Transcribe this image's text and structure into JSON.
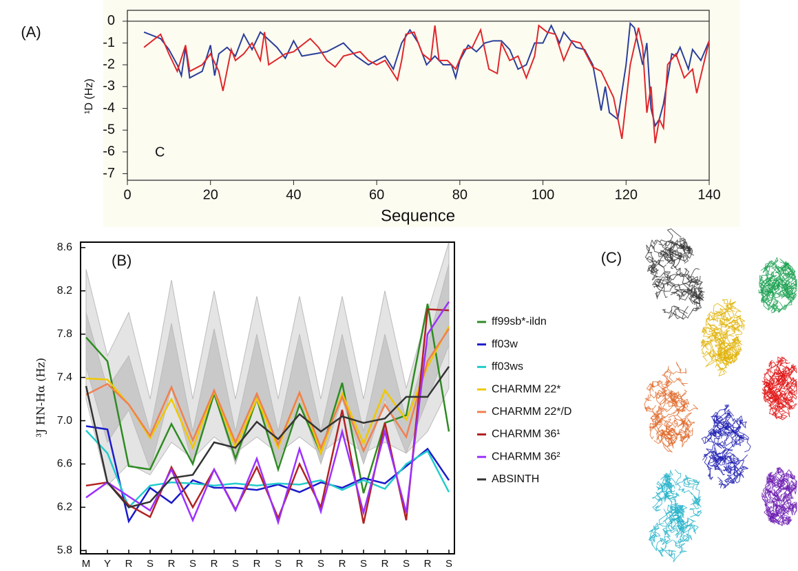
{
  "chart_data": [
    {
      "type": "line",
      "panel_label": "(A)",
      "annotation": "C",
      "ylabel": "¹D (Hz)",
      "xlabel": "Sequence",
      "xlim": [
        0,
        140
      ],
      "xticks": [
        0,
        20,
        40,
        60,
        80,
        100,
        120,
        140
      ],
      "ylim": [
        -7.3,
        0.5
      ],
      "yticks": [
        0,
        -1,
        -2,
        -3,
        -4,
        -5,
        -6,
        -7
      ],
      "series": [
        {
          "color": "#2a3e9a",
          "x": [
            4,
            8,
            10,
            12,
            13,
            14,
            15,
            18,
            20,
            21,
            22,
            24,
            26,
            28,
            30,
            32,
            36,
            38,
            40,
            42,
            48,
            52,
            55,
            58,
            60,
            62,
            64,
            66,
            68,
            70,
            72,
            74,
            76,
            78,
            79,
            80,
            82,
            84,
            86,
            88,
            90,
            92,
            94,
            96,
            98,
            100,
            101,
            102,
            104,
            105,
            108,
            110,
            112,
            114,
            115,
            116,
            118,
            120,
            121,
            122,
            124,
            125,
            126,
            127,
            128,
            129,
            131,
            132,
            133,
            135,
            136,
            138,
            140
          ],
          "values": [
            -0.5,
            -0.8,
            -1.3,
            -2.0,
            -2.5,
            -1.2,
            -2.6,
            -2.3,
            -1.1,
            -2.5,
            -1.5,
            -1.2,
            -1.6,
            -0.6,
            -1.3,
            -0.5,
            -1.2,
            -1.7,
            -0.9,
            -1.6,
            -1.4,
            -1.0,
            -1.6,
            -2.0,
            -1.8,
            -1.6,
            -2.2,
            -1.0,
            -0.4,
            -1.0,
            -2.0,
            -1.6,
            -2.0,
            -2.0,
            -2.6,
            -1.8,
            -1.1,
            -1.4,
            -1.0,
            -0.9,
            -0.9,
            -1.3,
            -2.2,
            -2.0,
            -1.0,
            -1.0,
            -0.6,
            -0.2,
            -1.0,
            -0.5,
            -1.2,
            -1.3,
            -2.0,
            -4.1,
            -3.0,
            -4.2,
            -4.5,
            -2.0,
            -0.1,
            -0.3,
            -2.0,
            -1.0,
            -4.0,
            -4.8,
            -4.5,
            -3.8,
            -1.5,
            -1.6,
            -1.2,
            -2.2,
            -1.3,
            -1.8,
            -0.9
          ]
        },
        {
          "color": "#e0262a",
          "x": [
            4,
            8,
            10,
            12,
            14,
            15,
            18,
            20,
            22,
            23,
            25,
            26,
            28,
            30,
            32,
            33,
            34,
            38,
            40,
            44,
            46,
            48,
            50,
            52,
            56,
            58,
            60,
            62,
            65,
            66,
            67,
            69,
            71,
            73,
            74,
            75,
            77,
            79,
            81,
            83,
            85,
            87,
            89,
            90,
            92,
            94,
            96,
            98,
            99,
            101,
            103,
            105,
            107,
            109,
            112,
            114,
            117,
            119,
            121,
            123,
            124,
            125,
            126,
            127,
            128,
            129,
            130,
            132,
            134,
            136,
            137,
            140
          ],
          "values": [
            -1.2,
            -0.6,
            -1.5,
            -2.3,
            -1.1,
            -2.3,
            -2.0,
            -1.5,
            -2.3,
            -3.2,
            -1.3,
            -1.8,
            -1.5,
            -1.0,
            -1.8,
            -0.5,
            -2.0,
            -1.5,
            -1.4,
            -0.8,
            -1.2,
            -1.8,
            -2.1,
            -1.6,
            -1.4,
            -1.8,
            -2.0,
            -1.8,
            -2.7,
            -1.8,
            -0.6,
            -0.5,
            -1.5,
            -1.8,
            -0.2,
            -1.8,
            -1.8,
            -2.2,
            -1.3,
            -1.2,
            -0.4,
            -2.2,
            -2.4,
            -1.0,
            -1.8,
            -1.6,
            -2.6,
            -1.6,
            -0.2,
            -0.5,
            -0.6,
            -1.8,
            -0.9,
            -1.0,
            -2.1,
            -2.3,
            -3.5,
            -5.4,
            -2.0,
            -0.3,
            -1.2,
            -4.2,
            -3.0,
            -5.6,
            -4.5,
            -4.9,
            -2.0,
            -1.5,
            -2.6,
            -2.2,
            -3.3,
            -0.9
          ]
        }
      ]
    },
    {
      "type": "line",
      "panel_label": "(B)",
      "ylabel": "³J HN-Hα (Hz)",
      "categories": [
        "M",
        "Y",
        "R",
        "S",
        "R",
        "S",
        "R",
        "S",
        "R",
        "S",
        "R",
        "S",
        "R",
        "S",
        "R",
        "S",
        "R",
        "S"
      ],
      "ylim": [
        5.77,
        8.65
      ],
      "yticks": [
        5.8,
        6.2,
        6.6,
        {
          "value": 7,
          "label": "7.0"
        },
        7.4,
        7.8,
        8.2,
        8.6
      ],
      "bands": [
        {
          "color": "#e4e4e4",
          "upper": [
            8.4,
            7.6,
            8.0,
            7.2,
            8.3,
            7.2,
            8.2,
            7.2,
            8.15,
            7.2,
            8.15,
            7.2,
            8.15,
            7.2,
            8.2,
            7.3,
            8.0,
            8.65
          ],
          "lower": [
            7.2,
            6.4,
            6.6,
            6.5,
            6.8,
            6.65,
            6.85,
            6.7,
            6.85,
            6.7,
            6.85,
            6.7,
            6.85,
            6.7,
            6.8,
            6.7,
            6.9,
            7.3
          ]
        },
        {
          "color": "#c9c9c9",
          "upper": [
            8.0,
            7.3,
            7.6,
            6.9,
            7.9,
            6.9,
            7.85,
            6.9,
            7.8,
            6.9,
            7.8,
            6.9,
            7.8,
            6.9,
            7.8,
            7.0,
            7.7,
            8.45
          ],
          "lower": [
            7.5,
            6.8,
            7.1,
            6.55,
            7.3,
            6.6,
            7.25,
            6.6,
            7.2,
            6.6,
            7.2,
            6.6,
            7.2,
            6.6,
            7.2,
            6.7,
            7.2,
            7.7
          ]
        }
      ],
      "series": [
        {
          "name": "ff99sb*-ildn",
          "color": "#2e8b22",
          "values": [
            7.77,
            7.55,
            6.58,
            6.55,
            6.97,
            6.6,
            7.25,
            6.65,
            7.2,
            6.55,
            7.15,
            6.7,
            7.35,
            6.33,
            6.98,
            7.05,
            8.08,
            6.9
          ]
        },
        {
          "name": "ff03w",
          "color": "#1a1acc",
          "values": [
            6.95,
            6.92,
            6.07,
            6.38,
            6.24,
            6.45,
            6.38,
            6.38,
            6.36,
            6.41,
            6.34,
            6.43,
            6.38,
            6.47,
            6.42,
            6.58,
            6.74,
            6.45
          ]
        },
        {
          "name": "ff03ws",
          "color": "#22cccc",
          "values": [
            6.91,
            6.7,
            6.2,
            6.4,
            6.43,
            6.42,
            6.4,
            6.42,
            6.4,
            6.42,
            6.41,
            6.45,
            6.36,
            6.45,
            6.37,
            6.6,
            6.72,
            6.34
          ]
        },
        {
          "name": "CHARMM 22*",
          "color": "#f0c800",
          "values": [
            7.39,
            7.38,
            7.15,
            6.84,
            7.2,
            6.75,
            7.27,
            6.75,
            7.2,
            6.75,
            7.26,
            6.7,
            7.25,
            6.79,
            7.28,
            7.01,
            7.5,
            7.87
          ]
        },
        {
          "name": "CHARMM 22*/D",
          "color": "#f08050",
          "values": [
            7.24,
            7.34,
            7.15,
            6.86,
            7.31,
            6.82,
            7.28,
            6.8,
            7.25,
            6.78,
            7.26,
            6.75,
            7.22,
            6.72,
            7.15,
            6.85,
            7.55,
            7.85
          ]
        },
        {
          "name": "CHARMM 36¹",
          "color": "#b22222",
          "values": [
            6.4,
            6.43,
            6.22,
            6.11,
            6.57,
            6.2,
            6.55,
            6.18,
            6.57,
            6.1,
            6.6,
            6.2,
            7.1,
            6.05,
            6.98,
            6.08,
            8.03,
            8.02
          ]
        },
        {
          "name": "CHARMM 36²",
          "color": "#9b30ff",
          "values": [
            6.29,
            6.43,
            6.3,
            6.17,
            6.55,
            6.08,
            6.55,
            6.17,
            6.65,
            6.06,
            6.74,
            6.16,
            6.9,
            6.15,
            6.9,
            6.15,
            7.8,
            8.1
          ]
        },
        {
          "name": "ABSINTH",
          "color": "#333333",
          "values": [
            7.32,
            6.43,
            6.2,
            6.25,
            6.47,
            6.5,
            6.8,
            6.75,
            6.99,
            6.83,
            7.06,
            6.9,
            7.04,
            6.98,
            7.02,
            7.22,
            7.22,
            7.5
          ]
        }
      ]
    }
  ],
  "panel_c": {
    "label": "(C)"
  }
}
